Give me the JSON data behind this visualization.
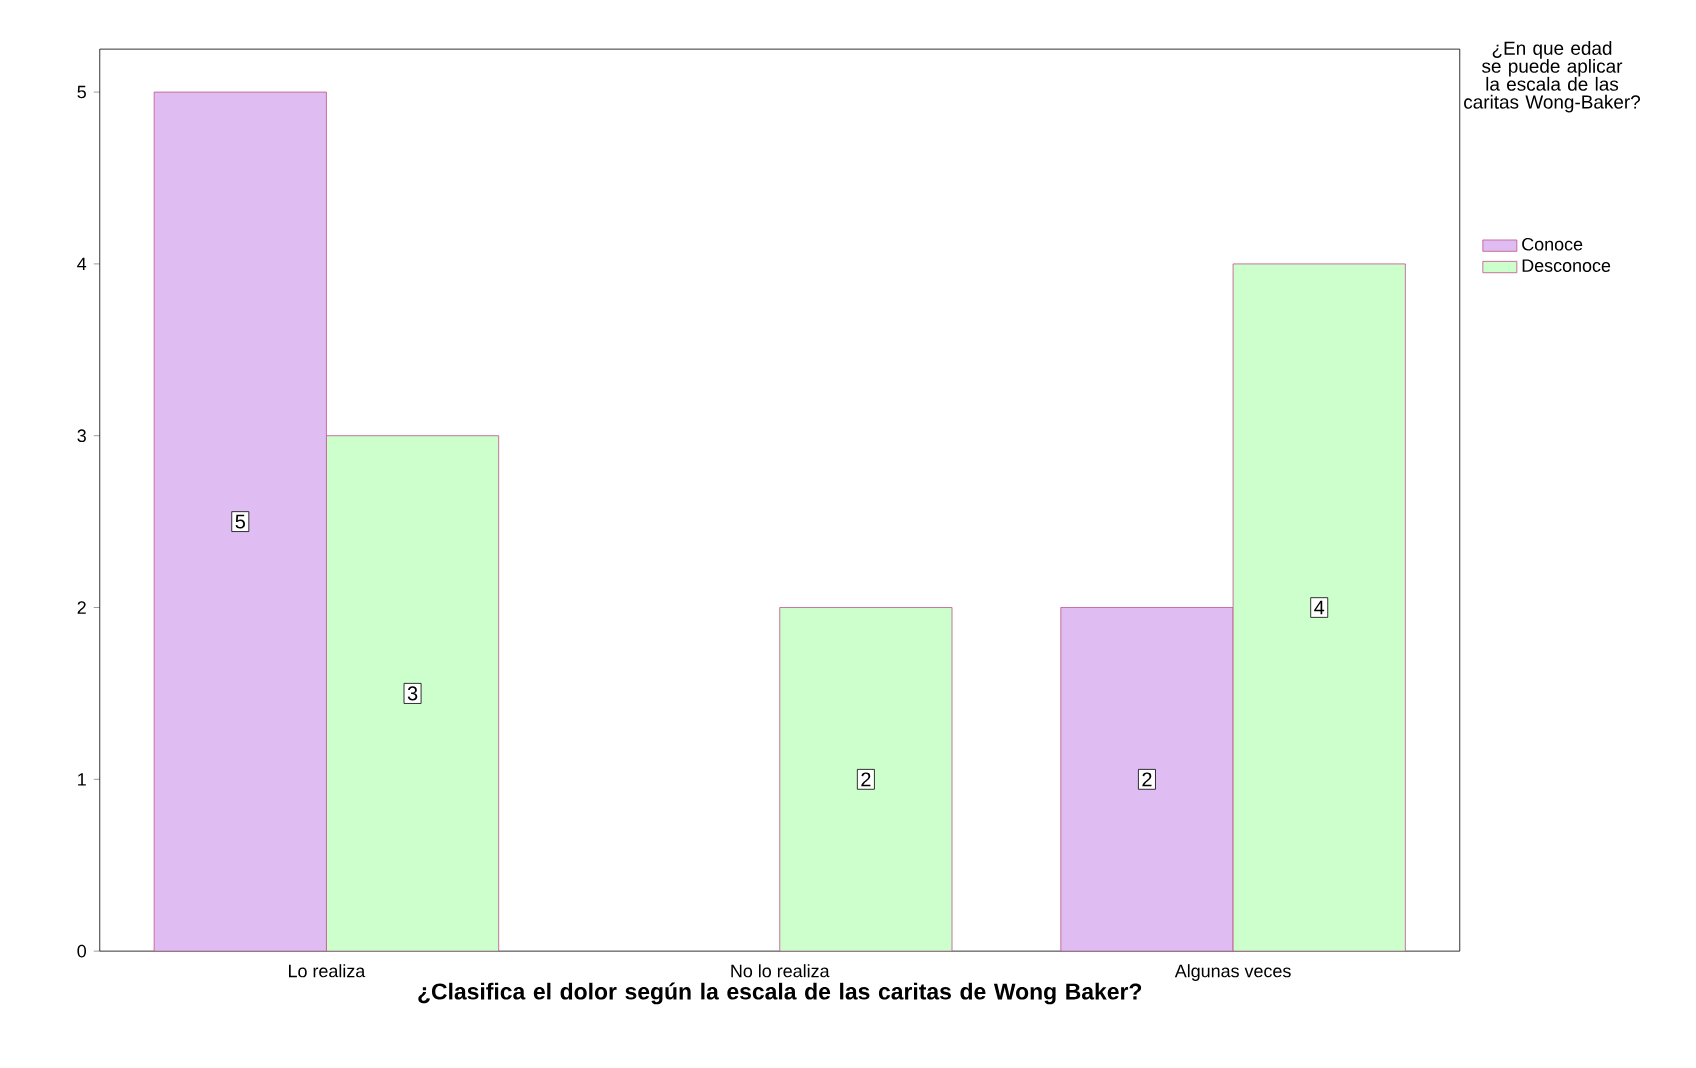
{
  "chart_data": {
    "type": "bar",
    "xlabel": "**¿Clasifica el dolor según la escala de las caritas de Wong Baker?**",
    "legend_title": "¿En que edad se puede aplicar la escala de las caritas Wong-Baker?",
    "categories": [
      "Lo realiza",
      "No lo realiza",
      "Algunas veces"
    ],
    "series": [
      {
        "name": "Conoce",
        "color": "#dfbdf2",
        "values": [
          5,
          null,
          2
        ]
      },
      {
        "name": "Desconoce",
        "color": "#ccffcc",
        "values": [
          3,
          2,
          4
        ]
      }
    ],
    "ylim": [
      0,
      5.25
    ],
    "yticks": [
      0,
      1,
      2,
      3,
      4,
      5
    ],
    "data_labels": true,
    "legend": "right",
    "grid": false
  }
}
